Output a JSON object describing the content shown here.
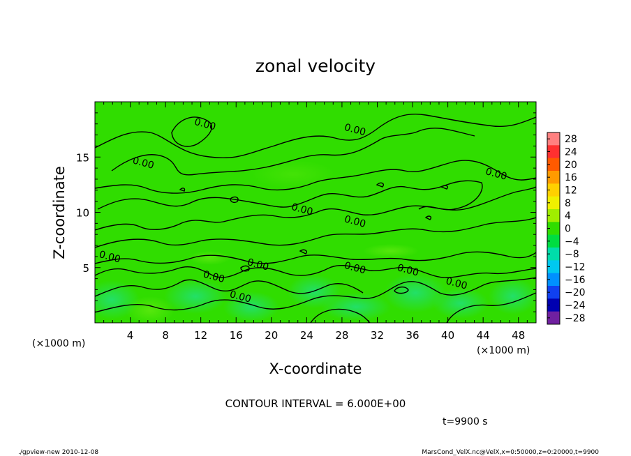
{
  "chart_data": {
    "type": "heatmap",
    "title": "zonal velocity",
    "xlabel": "X-coordinate",
    "ylabel": "Z-coordinate",
    "x_unit_label": "(×1000 m)",
    "y_unit_label": "(×1000 m)",
    "xlim": [
      0,
      50
    ],
    "ylim": [
      0,
      20
    ],
    "x_ticks": [
      4,
      8,
      12,
      16,
      20,
      24,
      28,
      32,
      36,
      40,
      44,
      48
    ],
    "y_ticks": [
      5,
      10,
      15
    ],
    "contour_interval_text": "CONTOUR INTERVAL = 6.000E+00",
    "contour_labels": [
      {
        "text": "0.00",
        "x": 12.5,
        "z": 18.0
      },
      {
        "text": "0.00",
        "x": 29.5,
        "z": 17.5
      },
      {
        "text": "0.00",
        "x": 5.5,
        "z": 14.5
      },
      {
        "text": "0.00",
        "x": 45.5,
        "z": 13.5
      },
      {
        "text": "0.00",
        "x": 23.5,
        "z": 10.3
      },
      {
        "text": "0.00",
        "x": 29.5,
        "z": 9.2
      },
      {
        "text": "0.00",
        "x": 1.7,
        "z": 6.0
      },
      {
        "text": "0.00",
        "x": 18.5,
        "z": 5.3
      },
      {
        "text": "0.00",
        "x": 29.5,
        "z": 5.0
      },
      {
        "text": "0.00",
        "x": 35.5,
        "z": 4.8
      },
      {
        "text": "0.00",
        "x": 13.5,
        "z": 4.2
      },
      {
        "text": "0.00",
        "x": 41.0,
        "z": 3.6
      },
      {
        "text": "0.00",
        "x": 16.5,
        "z": 2.4
      }
    ],
    "colorbar": {
      "levels": [
        28,
        24,
        20,
        16,
        12,
        8,
        4,
        0,
        -4,
        -8,
        -12,
        -16,
        -20,
        -24,
        -28
      ],
      "colors": [
        "#ff8080",
        "#ff3030",
        "#ff5a00",
        "#ff9a00",
        "#ffd000",
        "#f0f000",
        "#a0ee00",
        "#30dd00",
        "#00dd40",
        "#00ddaa",
        "#00c8f0",
        "#0090ff",
        "#1040f0",
        "#0000b0",
        "#7020a0"
      ]
    },
    "field_colors": {
      "base": "#30dd00",
      "light": "#44e830",
      "cyan": "#20dd80"
    }
  },
  "time_label": "t=9900 s",
  "footer_left": "./gpview-new 2010-12-08",
  "footer_right": "MarsCond_VelX.nc@VelX,x=0:50000,z=0:20000,t=9900"
}
